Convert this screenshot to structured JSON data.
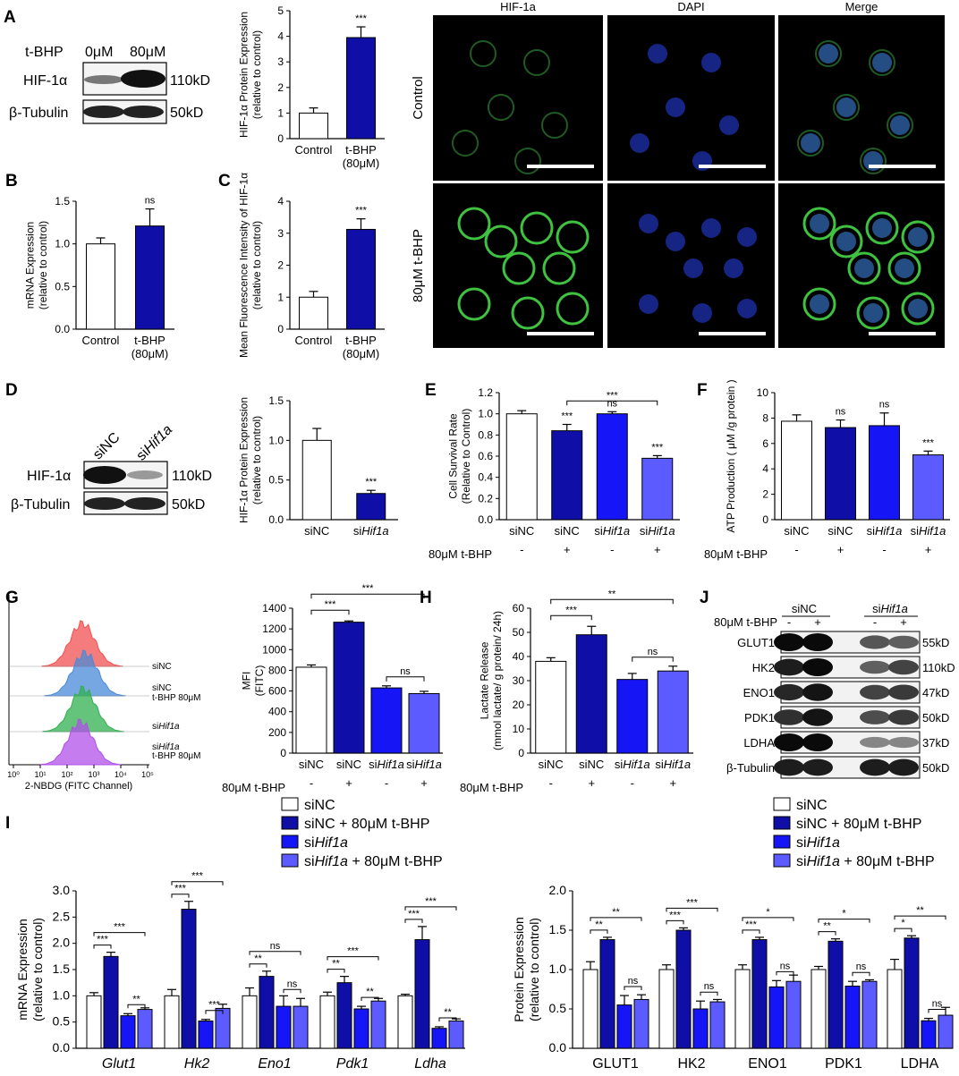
{
  "colors": {
    "white": "#ffffff",
    "dark": "#0f0fa8",
    "mid": "#1515f5",
    "light": "#5b5bff",
    "red": "#f25050",
    "blue": "#4a8ad8",
    "green": "#30b050",
    "purple": "#b050e8"
  },
  "panel_letters": {
    "A": "A",
    "B": "B",
    "C": "C",
    "D": "D",
    "E": "E",
    "F": "F",
    "G": "G",
    "H": "H",
    "I": "I",
    "J": "J"
  },
  "blotA": {
    "treat": "t-BHP",
    "lanes": [
      "0μM",
      "80μM"
    ],
    "rows": [
      {
        "name": "HIF-1α",
        "kd": "110kD"
      },
      {
        "name": "β-Tubulin",
        "kd": "50kD"
      }
    ]
  },
  "blotD": {
    "lane1": "siNC",
    "lane2_pre": "si",
    "lane2_it": "Hif1a",
    "rows": [
      {
        "name": "HIF-1α",
        "kd": "110kD"
      },
      {
        "name": "β-Tubulin",
        "kd": "50kD"
      }
    ]
  },
  "blotJ": {
    "grp1": "siNC",
    "grp2_pre": "si",
    "grp2_it": "Hif1a",
    "treat": "80μM t-BHP",
    "signs": [
      "-",
      "+",
      "-",
      "+"
    ],
    "rows": [
      {
        "name": "GLUT1",
        "kd": "55kD"
      },
      {
        "name": "HK2",
        "kd": "110kD"
      },
      {
        "name": "ENO1",
        "kd": "47kD"
      },
      {
        "name": "PDK1",
        "kd": "50kD"
      },
      {
        "name": "LDHA",
        "kd": "37kD"
      },
      {
        "name": "β-Tubulin",
        "kd": "50kD"
      }
    ]
  },
  "micro": {
    "cols": [
      "HIF-1a",
      "DAPI",
      "Merge"
    ],
    "rows": [
      "Control",
      "80μM t-BHP"
    ]
  },
  "flow": {
    "labels": [
      "siNC",
      "siNC",
      "t-BHP 80μM",
      "siHif1a",
      "siHif1a",
      "t-BHP 80μM"
    ],
    "xlabel": "2-NBDG (FITC Channel)",
    "xticks": [
      "10⁰",
      "10¹",
      "10²",
      "10³",
      "10⁴",
      "10⁵"
    ]
  },
  "chart_data": [
    {
      "id": "A",
      "type": "bar",
      "categories": [
        "Control",
        "t-BHP\n(80μM)"
      ],
      "values": [
        1.0,
        3.95
      ],
      "errors": [
        0.2,
        0.42
      ],
      "ylabel": "HIF-1α Protein Expression (relative to control)",
      "ylim": [
        0,
        5
      ],
      "yticks": [
        0,
        1,
        2,
        3,
        4,
        5
      ],
      "sig": [
        "",
        "***"
      ]
    },
    {
      "id": "B",
      "type": "bar",
      "categories": [
        "Control",
        "t-BHP\n(80μM)"
      ],
      "values": [
        1.0,
        1.21
      ],
      "errors": [
        0.07,
        0.2
      ],
      "ylabel": "mRNA Expression (relative to control)",
      "ylim": [
        0,
        1.5
      ],
      "yticks": [
        0.0,
        0.5,
        1.0,
        1.5
      ],
      "sig": [
        "",
        "ns"
      ]
    },
    {
      "id": "C",
      "type": "bar",
      "categories": [
        "Control",
        "t-BHP\n(80μM)"
      ],
      "values": [
        1.0,
        3.12
      ],
      "errors": [
        0.18,
        0.33
      ],
      "ylabel": "Mean Fluorescence Intensity of HIF-1α (relative to control)",
      "ylim": [
        0,
        4
      ],
      "yticks": [
        0,
        1,
        2,
        3,
        4
      ],
      "sig": [
        "",
        "***"
      ]
    },
    {
      "id": "D",
      "type": "bar",
      "categories": [
        "siNC",
        "siHif1a"
      ],
      "values": [
        1.0,
        0.33
      ],
      "errors": [
        0.15,
        0.04
      ],
      "ylabel": "HIF-1α Protein Expression (relative to control)",
      "ylim": [
        0,
        1.5
      ],
      "yticks": [
        0.0,
        0.5,
        1.0,
        1.5
      ],
      "sig": [
        "",
        "***"
      ]
    },
    {
      "id": "E",
      "type": "bar",
      "categories": [
        "siNC",
        "siNC",
        "siHif1a",
        "siHif1a"
      ],
      "treatment": [
        "-",
        "+",
        "-",
        "+"
      ],
      "treatment_label": "80μM t-BHP",
      "values": [
        1.0,
        0.84,
        1.0,
        0.58
      ],
      "errors": [
        0.03,
        0.06,
        0.02,
        0.025
      ],
      "ylabel": "Cell Survival Rate (Relative to Control)",
      "ylim": [
        0,
        1.2
      ],
      "yticks": [
        0.0,
        0.2,
        0.4,
        0.6,
        0.8,
        1.0,
        1.2
      ],
      "sig": [
        "",
        "***",
        "ns",
        "***"
      ],
      "brackets": [
        {
          "from": 1,
          "to": 3,
          "label": "***"
        }
      ]
    },
    {
      "id": "F",
      "type": "bar",
      "categories": [
        "siNC",
        "siNC",
        "siHif1a",
        "siHif1a"
      ],
      "treatment": [
        "-",
        "+",
        "-",
        "+"
      ],
      "treatment_label": "80μM t-BHP",
      "values": [
        7.75,
        7.25,
        7.4,
        5.1
      ],
      "errors": [
        0.5,
        0.6,
        1.0,
        0.3
      ],
      "ylabel": "ATP Production ( μM /g protein )",
      "ylim": [
        0,
        10
      ],
      "yticks": [
        0,
        2,
        4,
        6,
        8,
        10
      ],
      "sig": [
        "",
        "ns",
        "ns",
        "***"
      ],
      "brackets": []
    },
    {
      "id": "G",
      "type": "bar",
      "categories": [
        "siNC",
        "siNC",
        "siHif1a",
        "siHif1a"
      ],
      "treatment": [
        "-",
        "+",
        "-",
        "+"
      ],
      "treatment_label": "80μM t-BHP",
      "values": [
        830,
        1265,
        630,
        575
      ],
      "errors": [
        22,
        12,
        20,
        22
      ],
      "ylabel": "MFI (FITC)",
      "ylim": [
        0,
        1400
      ],
      "yticks": [
        0,
        200,
        400,
        600,
        800,
        1000,
        1200,
        1400
      ],
      "sig": [
        "",
        "",
        "",
        ""
      ],
      "brackets": [
        {
          "from": 0,
          "to": 1,
          "label": "***"
        },
        {
          "from": 0,
          "to": 3,
          "label": "***"
        },
        {
          "from": 2,
          "to": 3,
          "label": "ns"
        }
      ]
    },
    {
      "id": "H",
      "type": "bar",
      "categories": [
        "siNC",
        "siNC",
        "siHif1a",
        "siHif1a"
      ],
      "treatment": [
        "-",
        "+",
        "-",
        "+"
      ],
      "treatment_label": "80μM t-BHP",
      "values": [
        38,
        49,
        30.5,
        34
      ],
      "errors": [
        1.5,
        3.5,
        2.5,
        2
      ],
      "ylabel": "Lactate Release (mmol lactate/ g protein/ 24h)",
      "ylim": [
        0,
        60
      ],
      "yticks": [
        0,
        10,
        20,
        30,
        40,
        50,
        60
      ],
      "sig": [
        "",
        "",
        "",
        ""
      ],
      "brackets": [
        {
          "from": 0,
          "to": 1,
          "label": "***"
        },
        {
          "from": 0,
          "to": 3,
          "label": "**"
        },
        {
          "from": 2,
          "to": 3,
          "label": "ns"
        }
      ]
    },
    {
      "id": "I1",
      "type": "bar",
      "legend": [
        "siNC",
        "siNC + 80μM t-BHP",
        "siHif1a",
        "siHif1a + 80μM t-BHP"
      ],
      "categories": [
        "Glut1",
        "Hk2",
        "Eno1",
        "Pdk1",
        "Ldha"
      ],
      "series": [
        {
          "values": [
            1.0,
            1.0,
            1.0,
            1.0,
            1.0
          ],
          "errors": [
            0.06,
            0.12,
            0.15,
            0.07,
            0.03
          ]
        },
        {
          "values": [
            1.75,
            2.65,
            1.37,
            1.25,
            2.07
          ],
          "errors": [
            0.08,
            0.15,
            0.1,
            0.12,
            0.25
          ]
        },
        {
          "values": [
            0.62,
            0.52,
            0.8,
            0.75,
            0.38
          ],
          "errors": [
            0.04,
            0.03,
            0.2,
            0.05,
            0.03
          ]
        },
        {
          "values": [
            0.74,
            0.76,
            0.8,
            0.9,
            0.52
          ],
          "errors": [
            0.03,
            0.08,
            0.15,
            0.05,
            0.04
          ]
        }
      ],
      "brackets": [
        [
          "***",
          "***",
          "**"
        ],
        [
          "***",
          "***",
          "***"
        ],
        [
          "**",
          "ns",
          "ns"
        ],
        [
          "**",
          "***",
          "**"
        ],
        [
          "***",
          "***",
          "**"
        ]
      ],
      "ylabel": "mRNA Expression (relative to control)",
      "ylim": [
        0,
        3.0
      ],
      "yticks": [
        0.0,
        0.5,
        1.0,
        1.5,
        2.0,
        2.5,
        3.0
      ]
    },
    {
      "id": "I2",
      "type": "bar",
      "legend": [
        "siNC",
        "siNC + 80μM t-BHP",
        "siHif1a",
        "siHif1a + 80μM t-BHP"
      ],
      "categories": [
        "GLUT1",
        "HK2",
        "ENO1",
        "PDK1",
        "LDHA"
      ],
      "series": [
        {
          "values": [
            1.0,
            1.0,
            1.0,
            1.0,
            1.0
          ],
          "errors": [
            0.1,
            0.06,
            0.06,
            0.04,
            0.13
          ]
        },
        {
          "values": [
            1.38,
            1.5,
            1.38,
            1.36,
            1.4
          ]
        },
        {
          "values": [
            0.55,
            0.5,
            0.78,
            0.79,
            0.35
          ],
          "errors": [
            0.12,
            0.1,
            0.08,
            0.06,
            0.03
          ]
        },
        {
          "values": [
            0.62,
            0.59,
            0.85,
            0.85,
            0.42
          ],
          "errors": [
            0.06,
            0.03,
            0.08,
            0.02,
            0.1
          ]
        }
      ],
      "brackets": [
        [
          "**",
          "**",
          "ns"
        ],
        [
          "***",
          "***",
          "ns"
        ],
        [
          "***",
          "*",
          "ns"
        ],
        [
          "**",
          "*",
          "ns"
        ],
        [
          "*",
          "**",
          "ns"
        ]
      ],
      "ylabel": "Protein Expression (relative to control)",
      "ylim": [
        0,
        2.0
      ],
      "yticks": [
        0.0,
        0.5,
        1.0,
        1.5,
        2.0
      ]
    }
  ]
}
